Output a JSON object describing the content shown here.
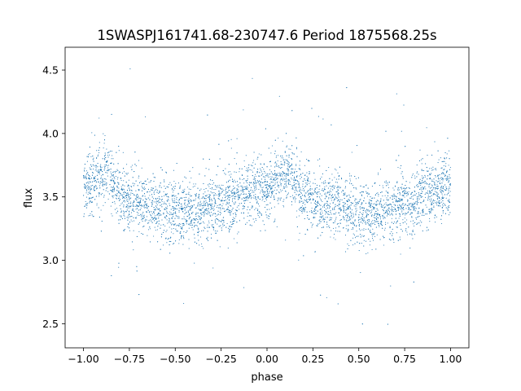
{
  "chart_data": {
    "type": "scatter",
    "title": "1SWASPJ161741.68-230747.6 Period 1875568.25s",
    "xlabel": "phase",
    "ylabel": "flux",
    "xlim": [
      -1.1,
      1.1
    ],
    "ylim": [
      2.31,
      4.68
    ],
    "x_ticks": [
      -1.0,
      -0.75,
      -0.5,
      -0.25,
      0.0,
      0.25,
      0.5,
      0.75,
      1.0
    ],
    "x_tick_labels": [
      "−1.00",
      "−0.75",
      "−0.50",
      "−0.25",
      "0.00",
      "0.25",
      "0.50",
      "0.75",
      "1.00"
    ],
    "y_ticks": [
      2.5,
      3.0,
      3.5,
      4.0,
      4.5
    ],
    "y_tick_labels": [
      "2.5",
      "3.0",
      "3.5",
      "4.0",
      "4.5"
    ],
    "grid": false,
    "marker_color": "#1f77b4",
    "series": [
      {
        "points_summary": "folded light curve repeated over two cycles",
        "x_range": [
          -1.0,
          1.0
        ],
        "profile": {
          "phase": [
            0.0,
            0.05,
            0.1,
            0.13,
            0.16,
            0.2,
            0.25,
            0.3,
            0.35,
            0.4,
            0.45,
            0.5,
            0.55,
            0.6,
            0.65,
            0.7,
            0.75,
            0.8,
            0.85,
            0.9,
            0.95,
            1.0
          ],
          "flux": [
            3.58,
            3.62,
            3.66,
            3.7,
            3.6,
            3.5,
            3.47,
            3.45,
            3.45,
            3.44,
            3.4,
            3.38,
            3.37,
            3.38,
            3.4,
            3.42,
            3.45,
            3.48,
            3.5,
            3.53,
            3.56,
            3.58
          ]
        },
        "scatter_sigma": 0.12,
        "point_count": 6000
      }
    ]
  }
}
